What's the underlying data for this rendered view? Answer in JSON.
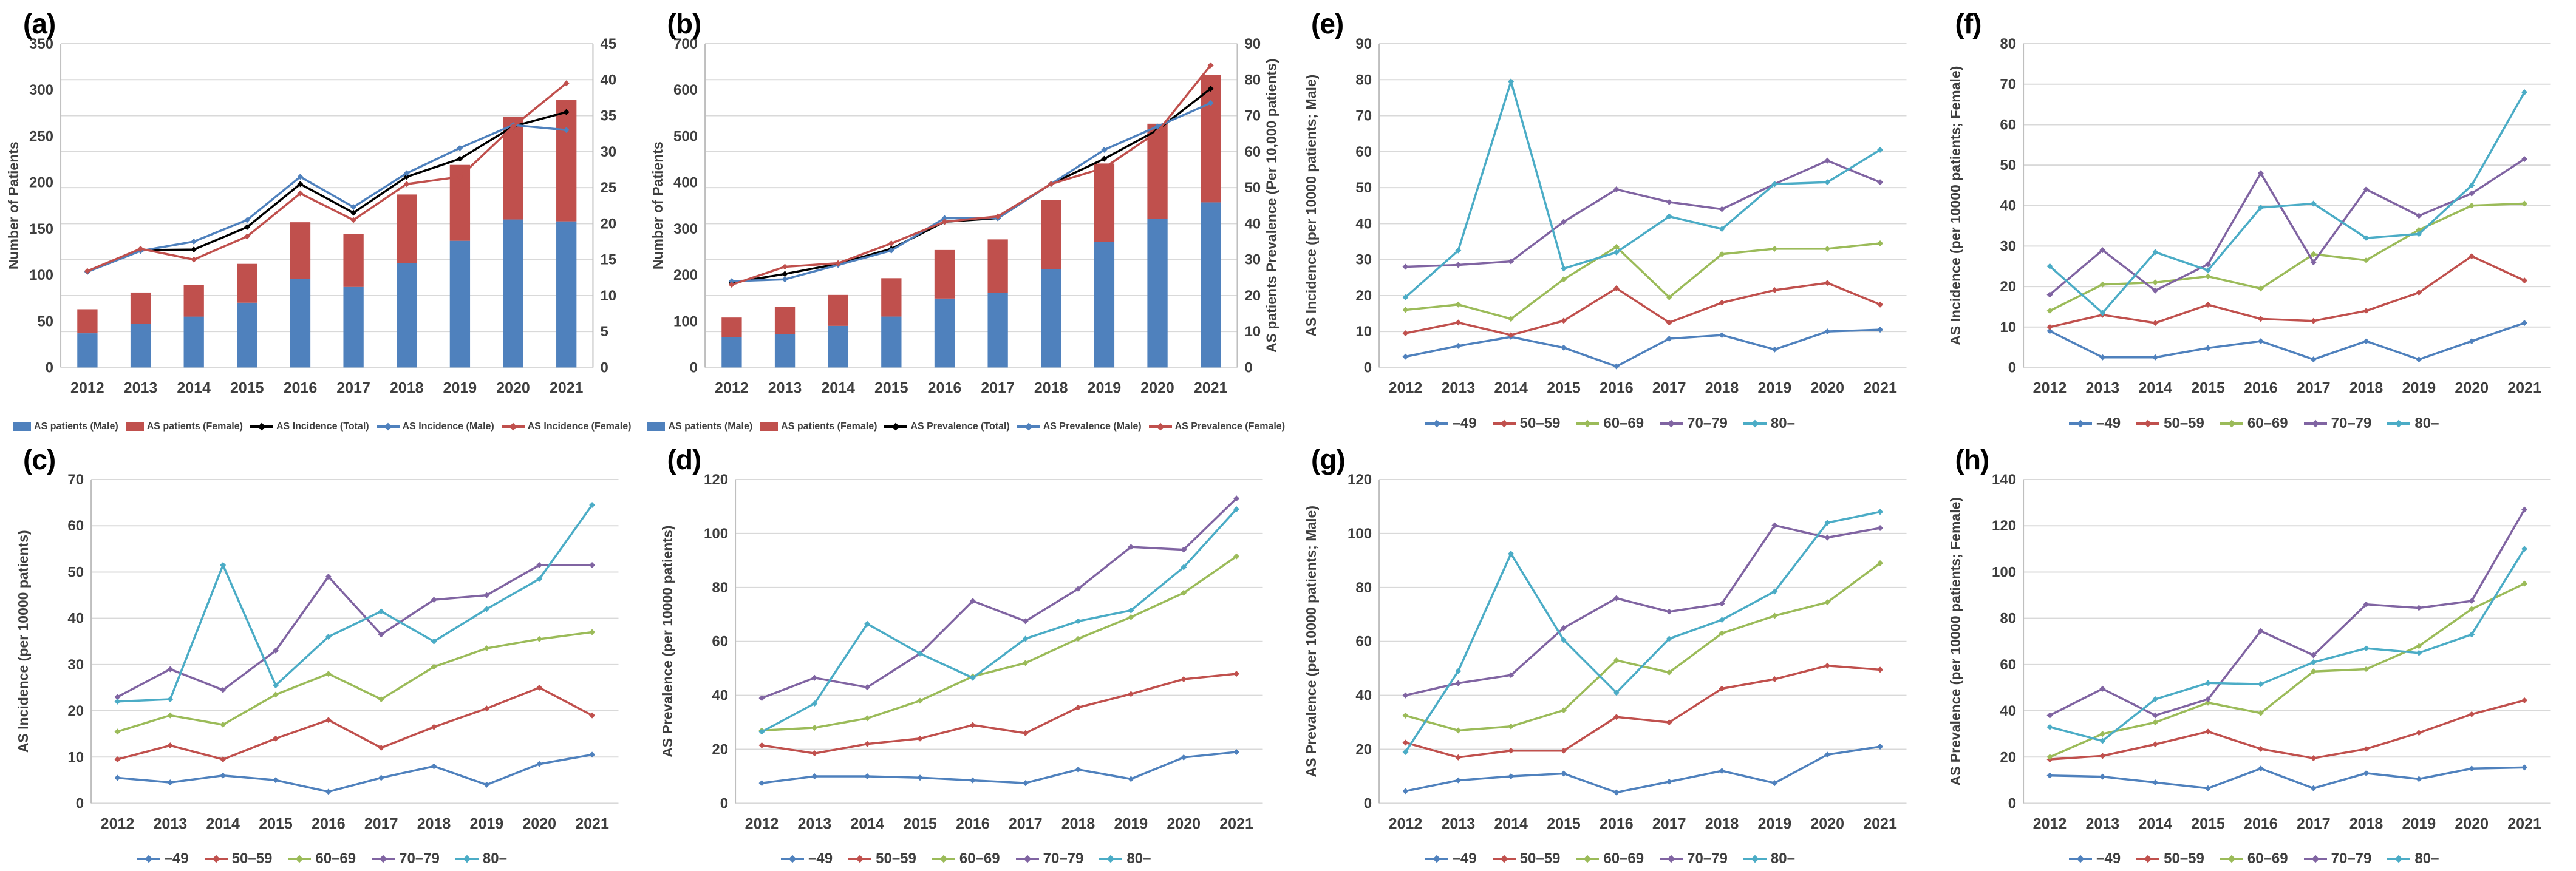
{
  "page": {
    "background": "#ffffff",
    "text_color": "#3f3f3f",
    "gridline_color": "#d9d9d9",
    "axisline_color": "#bfbfbf"
  },
  "palette": {
    "blue": "#4F81BD",
    "red": "#C0504D",
    "green": "#9BBB59",
    "purple": "#8064A2",
    "cyan": "#4BACC6",
    "black": "#000000"
  },
  "chart_data": [
    {
      "id": "a",
      "label": "(a)",
      "type": "combo",
      "categories": [
        "2012",
        "2013",
        "2014",
        "2015",
        "2016",
        "2017",
        "2018",
        "2019",
        "2020",
        "2021"
      ],
      "left_axis": {
        "min": 0,
        "max": 350,
        "step": 50,
        "title": "Number of Patients"
      },
      "right_axis": {
        "min": 0,
        "max": 45,
        "step": 5,
        "title": ""
      },
      "bar_series": [
        {
          "name": "AS patients (Male)",
          "color": "#4F81BD",
          "values": [
            37,
            47,
            55,
            70,
            96,
            87,
            113,
            137,
            160,
            158
          ]
        },
        {
          "name": "AS patients (Female)",
          "color": "#C0504D",
          "values": [
            26,
            34,
            34,
            42,
            61,
            57,
            74,
            82,
            111,
            131
          ]
        }
      ],
      "line_series": [
        {
          "name": "AS Incidence (Total)",
          "color": "#000000",
          "axis": "right",
          "values": [
            13.3,
            16.3,
            16.4,
            19.5,
            25.5,
            21.5,
            26.5,
            29,
            33.5,
            35.5
          ]
        },
        {
          "name": "AS Incidence (Male)",
          "color": "#4F81BD",
          "axis": "right",
          "values": [
            13.3,
            16.2,
            17.5,
            20.5,
            26.5,
            22.3,
            27,
            30.5,
            33.7,
            33
          ]
        },
        {
          "name": "AS Incidence (Female)",
          "color": "#C0504D",
          "axis": "right",
          "values": [
            13.4,
            16.5,
            15,
            18.2,
            24.2,
            20.5,
            25.5,
            26.5,
            33.5,
            39.5
          ]
        }
      ]
    },
    {
      "id": "b",
      "label": "(b)",
      "type": "combo",
      "categories": [
        "2012",
        "2013",
        "2014",
        "2015",
        "2016",
        "2017",
        "2018",
        "2019",
        "2020",
        "2021"
      ],
      "left_axis": {
        "min": 0,
        "max": 700,
        "step": 100,
        "title": "Number of Patients"
      },
      "right_axis": {
        "min": 0,
        "max": 90,
        "step": 10,
        "title": "AS patients Prevalence (Per 10,000 patients)"
      },
      "bar_series": [
        {
          "name": "AS patients (Male)",
          "color": "#4F81BD",
          "values": [
            65,
            72,
            90,
            110,
            149,
            162,
            213,
            271,
            322,
            357
          ]
        },
        {
          "name": "AS patients (Female)",
          "color": "#C0504D",
          "values": [
            43,
            59,
            67,
            83,
            105,
            115,
            149,
            170,
            205,
            276
          ]
        }
      ],
      "line_series": [
        {
          "name": "AS Prevalence (Total)",
          "color": "#000000",
          "axis": "right",
          "values": [
            23.5,
            26,
            28.8,
            33,
            40.5,
            41.5,
            51,
            58,
            66,
            77.5
          ]
        },
        {
          "name": "AS Prevalence (Male)",
          "color": "#4F81BD",
          "axis": "right",
          "values": [
            24,
            24.5,
            28.5,
            32.5,
            41.5,
            41.5,
            51,
            60.5,
            67,
            73.5
          ]
        },
        {
          "name": "AS Prevalence (Female)",
          "color": "#C0504D",
          "axis": "right",
          "values": [
            23,
            28,
            29,
            34.5,
            40.5,
            42,
            51,
            55.5,
            65.5,
            84
          ]
        }
      ]
    },
    {
      "id": "e",
      "label": "(e)",
      "type": "line",
      "categories": [
        "2012",
        "2013",
        "2014",
        "2015",
        "2016",
        "2017",
        "2018",
        "2019",
        "2020",
        "2021"
      ],
      "left_axis": {
        "min": 0,
        "max": 90,
        "step": 10,
        "title": "AS Incidence (per 10000 patients; Male)"
      },
      "line_series": [
        {
          "name": "–49",
          "color": "#4F81BD",
          "axis": "left",
          "values": [
            3,
            6,
            8.5,
            5.5,
            0.3,
            8,
            9,
            5,
            10,
            10.5
          ]
        },
        {
          "name": "50–59",
          "color": "#C0504D",
          "axis": "left",
          "values": [
            9.5,
            12.5,
            9,
            13,
            22,
            12.5,
            18,
            21.5,
            23.5,
            17.5
          ]
        },
        {
          "name": "60–69",
          "color": "#9BBB59",
          "axis": "left",
          "values": [
            16,
            17.5,
            13.5,
            24.5,
            33.5,
            19.5,
            31.5,
            33,
            33,
            34.5
          ]
        },
        {
          "name": "70–79",
          "color": "#8064A2",
          "axis": "left",
          "values": [
            28,
            28.5,
            29.5,
            40.5,
            49.5,
            46,
            44,
            51,
            57.5,
            51.5
          ]
        },
        {
          "name": "80–",
          "color": "#4BACC6",
          "axis": "left",
          "values": [
            19.5,
            32.5,
            79.5,
            27.5,
            32,
            42,
            38.5,
            51,
            51.5,
            60.5
          ]
        }
      ]
    },
    {
      "id": "f",
      "label": "(f)",
      "type": "line",
      "categories": [
        "2012",
        "2013",
        "2014",
        "2015",
        "2016",
        "2017",
        "2018",
        "2019",
        "2020",
        "2021"
      ],
      "left_axis": {
        "min": 0,
        "max": 80,
        "step": 10,
        "title": "AS Incidence (per 10000 patients; Female)"
      },
      "line_series": [
        {
          "name": "–49",
          "color": "#4F81BD",
          "axis": "left",
          "values": [
            9,
            2.5,
            2.5,
            4.8,
            6.5,
            2,
            6.5,
            2,
            6.5,
            11
          ]
        },
        {
          "name": "50–59",
          "color": "#C0504D",
          "axis": "left",
          "values": [
            10,
            13,
            11,
            15.5,
            12,
            11.5,
            14,
            18.5,
            27.5,
            21.5
          ]
        },
        {
          "name": "60–69",
          "color": "#9BBB59",
          "axis": "left",
          "values": [
            14,
            20.5,
            21,
            22.5,
            19.5,
            28,
            26.5,
            34,
            40,
            40.5
          ]
        },
        {
          "name": "70–79",
          "color": "#8064A2",
          "axis": "left",
          "values": [
            18,
            29,
            19,
            25.5,
            48,
            26,
            44,
            37.5,
            43,
            51.5
          ]
        },
        {
          "name": "80–",
          "color": "#4BACC6",
          "axis": "left",
          "values": [
            25,
            13.5,
            28.5,
            24,
            39.5,
            40.5,
            32,
            33,
            45,
            68
          ]
        }
      ]
    },
    {
      "id": "c",
      "label": "(c)",
      "type": "line",
      "categories": [
        "2012",
        "2013",
        "2014",
        "2015",
        "2016",
        "2017",
        "2018",
        "2019",
        "2020",
        "2021"
      ],
      "left_axis": {
        "min": 0,
        "max": 70,
        "step": 10,
        "title": "AS Incidence (per 10000 patients)"
      },
      "line_series": [
        {
          "name": "–49",
          "color": "#4F81BD",
          "axis": "left",
          "values": [
            5.5,
            4.5,
            6,
            5,
            2.5,
            5.5,
            8,
            4,
            8.5,
            10.5
          ]
        },
        {
          "name": "50–59",
          "color": "#C0504D",
          "axis": "left",
          "values": [
            9.5,
            12.5,
            9.5,
            14,
            18,
            12,
            16.5,
            20.5,
            25,
            19
          ]
        },
        {
          "name": "60–69",
          "color": "#9BBB59",
          "axis": "left",
          "values": [
            15.5,
            19,
            17,
            23.5,
            28,
            22.5,
            29.5,
            33.5,
            35.5,
            37
          ]
        },
        {
          "name": "70–79",
          "color": "#8064A2",
          "axis": "left",
          "values": [
            23,
            29,
            24.5,
            33,
            49,
            36.5,
            44,
            45,
            51.5,
            51.5
          ]
        },
        {
          "name": "80–",
          "color": "#4BACC6",
          "axis": "left",
          "values": [
            22,
            22.5,
            51.5,
            25.5,
            36,
            41.5,
            35,
            42,
            48.5,
            64.5
          ]
        }
      ]
    },
    {
      "id": "d",
      "label": "(d)",
      "type": "line",
      "categories": [
        "2012",
        "2013",
        "2014",
        "2015",
        "2016",
        "2017",
        "2018",
        "2019",
        "2020",
        "2021"
      ],
      "left_axis": {
        "min": 0,
        "max": 120,
        "step": 20,
        "title": "AS Prevalence (per 10000 patients)"
      },
      "line_series": [
        {
          "name": "–49",
          "color": "#4F81BD",
          "axis": "left",
          "values": [
            7.5,
            10,
            10,
            9.5,
            8.5,
            7.5,
            12.5,
            9,
            17,
            19
          ]
        },
        {
          "name": "50–59",
          "color": "#C0504D",
          "axis": "left",
          "values": [
            21.5,
            18.5,
            22,
            24,
            29,
            26,
            35.5,
            40.5,
            46,
            48
          ]
        },
        {
          "name": "60–69",
          "color": "#9BBB59",
          "axis": "left",
          "values": [
            27,
            28,
            31.5,
            38,
            47,
            52,
            61,
            69,
            78,
            91.5
          ]
        },
        {
          "name": "70–79",
          "color": "#8064A2",
          "axis": "left",
          "values": [
            39,
            46.5,
            43,
            55.5,
            75,
            67.5,
            79.5,
            95,
            94,
            113
          ]
        },
        {
          "name": "80–",
          "color": "#4BACC6",
          "axis": "left",
          "values": [
            26.5,
            37,
            66.5,
            55.5,
            46.5,
            61,
            67.5,
            71.5,
            87.5,
            109
          ]
        }
      ]
    },
    {
      "id": "g",
      "label": "(g)",
      "type": "line",
      "categories": [
        "2012",
        "2013",
        "2014",
        "2015",
        "2016",
        "2017",
        "2018",
        "2019",
        "2020",
        "2021"
      ],
      "left_axis": {
        "min": 0,
        "max": 120,
        "step": 20,
        "title": "AS Prevalence (per 10000 patients; Male)"
      },
      "line_series": [
        {
          "name": "–49",
          "color": "#4F81BD",
          "axis": "left",
          "values": [
            4.5,
            8.5,
            10,
            11,
            4,
            8,
            12,
            7.5,
            18,
            21
          ]
        },
        {
          "name": "50–59",
          "color": "#C0504D",
          "axis": "left",
          "values": [
            22.5,
            17,
            19.5,
            19.5,
            32,
            30,
            42.5,
            46,
            51,
            49.5
          ]
        },
        {
          "name": "60–69",
          "color": "#9BBB59",
          "axis": "left",
          "values": [
            32.5,
            27,
            28.5,
            34.5,
            53,
            48.5,
            63,
            69.5,
            74.5,
            89
          ]
        },
        {
          "name": "70–79",
          "color": "#8064A2",
          "axis": "left",
          "values": [
            40,
            44.5,
            47.5,
            65,
            76,
            71,
            74,
            103,
            98.5,
            102
          ]
        },
        {
          "name": "80–",
          "color": "#4BACC6",
          "axis": "left",
          "values": [
            19,
            49,
            92.5,
            60.5,
            41,
            61,
            68,
            78.5,
            104,
            108
          ]
        }
      ]
    },
    {
      "id": "h",
      "label": "(h)",
      "type": "line",
      "categories": [
        "2012",
        "2013",
        "2014",
        "2015",
        "2016",
        "2017",
        "2018",
        "2019",
        "2020",
        "2021"
      ],
      "left_axis": {
        "min": 0,
        "max": 140,
        "step": 20,
        "title": "AS Prevalence (per 10000 patients; Female)"
      },
      "line_series": [
        {
          "name": "–49",
          "color": "#4F81BD",
          "axis": "left",
          "values": [
            12,
            11.5,
            9,
            6.5,
            15,
            6.5,
            13,
            10.5,
            15,
            15.5
          ]
        },
        {
          "name": "50–59",
          "color": "#C0504D",
          "axis": "left",
          "values": [
            19,
            20.5,
            25.5,
            31,
            23.5,
            19.5,
            23.5,
            30.5,
            38.5,
            44.5
          ]
        },
        {
          "name": "60–69",
          "color": "#9BBB59",
          "axis": "left",
          "values": [
            20,
            30,
            35,
            43.5,
            39,
            57,
            58,
            68,
            84,
            95
          ]
        },
        {
          "name": "70–79",
          "color": "#8064A2",
          "axis": "left",
          "values": [
            38,
            49.5,
            38,
            45,
            74.5,
            64,
            86,
            84.5,
            87.5,
            127
          ]
        },
        {
          "name": "80–",
          "color": "#4BACC6",
          "axis": "left",
          "values": [
            33,
            27,
            45,
            52,
            51.5,
            61,
            67,
            65,
            73,
            110
          ]
        }
      ]
    }
  ]
}
